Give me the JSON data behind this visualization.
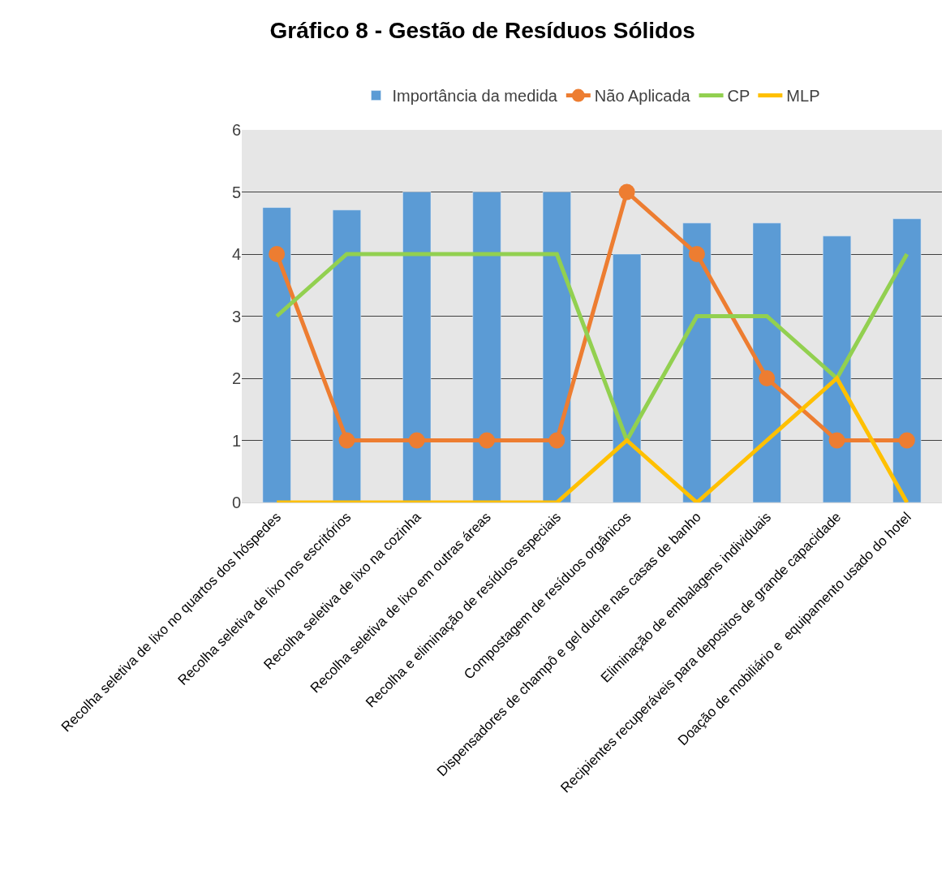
{
  "chart_data": {
    "type": "bar",
    "title": "Gráfico 8 - Gestão de Resíduos Sólidos",
    "categories": [
      "Recolha seletiva de lixo no quartos dos hóspedes",
      "Recolha seletiva de lixo nos escritórios",
      "Recolha seletiva de lixo na cozinha",
      "Recolha seletiva de lixo em outras áreas",
      "Recolha e eliminação de resíduos especiais",
      "Compostagem de resíduos orgânicos",
      "Dispensadores de champô e gel duche nas casas de banho",
      "Eliminação de embalagens individuais",
      "Recipientes recuperáveis para depositos de grande capacidade",
      "Doação de mobiliário e  equipamento usado do hotel"
    ],
    "series": [
      {
        "name": "Importância da medida",
        "color": "#5b9bd5",
        "values": [
          4.75,
          4.71,
          5,
          5,
          5,
          4,
          4.5,
          4.5,
          4.29,
          4.57
        ]
      },
      {
        "name": "Não Aplicada",
        "type": "line",
        "color": "#ed7d31",
        "marker": "circle",
        "values": [
          4,
          1,
          1,
          1,
          1,
          5,
          4,
          2,
          1,
          1
        ]
      },
      {
        "name": "CP",
        "type": "line",
        "color": "#92d050",
        "marker": "none",
        "values": [
          3,
          4,
          4,
          4,
          4,
          1,
          3,
          3,
          2,
          4
        ]
      },
      {
        "name": "MLP",
        "type": "line",
        "color": "#ffc000",
        "marker": "none",
        "values": [
          0,
          0,
          0,
          0,
          0,
          1,
          0,
          1,
          2,
          0
        ]
      }
    ],
    "ylim": [
      0,
      6
    ],
    "yticks": [
      0,
      1,
      2,
      3,
      4,
      5,
      6
    ],
    "grid": "y",
    "legend": "top"
  }
}
